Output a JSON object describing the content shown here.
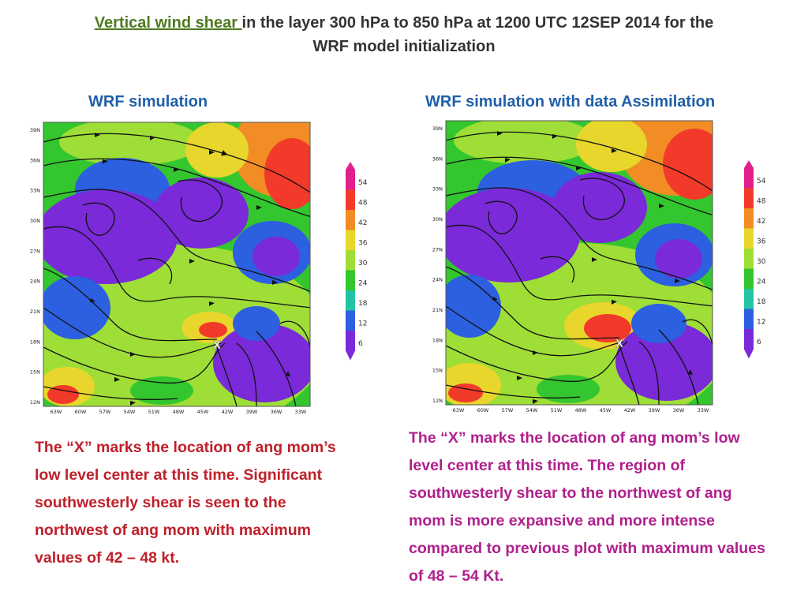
{
  "title": {
    "highlight": "Vertical wind shear ",
    "rest": "in the layer 300 hPa to 850 hPa at 1200 UTC 12SEP 2014 for the",
    "line2": "WRF model initialization"
  },
  "panels": [
    {
      "label": "WRF simulation",
      "marker": "X",
      "lat_labels": [
        "39N",
        "36N",
        "33N",
        "30N",
        "27N",
        "24N",
        "21N",
        "18N",
        "15N",
        "12N"
      ],
      "lon_labels": [
        "63W",
        "60W",
        "57W",
        "54W",
        "51W",
        "48W",
        "45W",
        "42W",
        "39W",
        "36W",
        "33W"
      ],
      "scale_values": [
        "54",
        "48",
        "42",
        "36",
        "30",
        "24",
        "18",
        "12",
        "6"
      ],
      "note": "The “X” marks the location of ang mom’s low level center at this time. Significant southwesterly shear is seen to the northwest of ang mom with maximum values of 42 – 48 kt."
    },
    {
      "label": "WRF simulation with data Assimilation",
      "marker": "X",
      "lat_labels": [
        "39N",
        "36N",
        "33N",
        "30N",
        "27N",
        "24N",
        "21N",
        "18N",
        "15N",
        "12N"
      ],
      "lon_labels": [
        "63W",
        "60W",
        "57W",
        "54W",
        "51W",
        "48W",
        "45W",
        "42W",
        "39W",
        "36W",
        "33W"
      ],
      "scale_values": [
        "54",
        "48",
        "42",
        "36",
        "30",
        "24",
        "18",
        "12",
        "6"
      ],
      "note": "The “X” marks the location of ang mom’s low level center at this time. The region of southwesterly shear to the northwest of ang mom is more expansive and more intense compared to previous plot with maximum values of 48 – 54 Kt."
    }
  ],
  "palette": [
    "#e0208c",
    "#f23a2a",
    "#f28c24",
    "#e8d62c",
    "#9ede36",
    "#33c62e",
    "#23c4a6",
    "#2c60e0",
    "#7a2ad8"
  ]
}
